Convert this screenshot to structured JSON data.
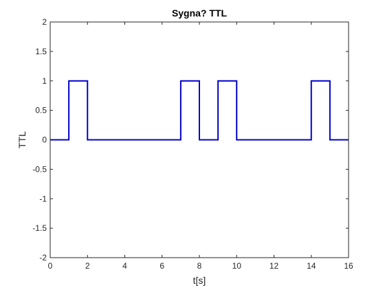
{
  "chart_data": {
    "type": "line",
    "title": "Sygna? TTL",
    "xlabel": "t[s]",
    "ylabel": "TTL",
    "xlim": [
      0,
      16
    ],
    "ylim": [
      -2,
      2
    ],
    "xticks": [
      0,
      2,
      4,
      6,
      8,
      10,
      12,
      14,
      16
    ],
    "yticks": [
      -2,
      -1.5,
      -1,
      -0.5,
      0,
      0.5,
      1,
      1.5,
      2
    ],
    "xtick_labels": [
      "0",
      "2",
      "4",
      "6",
      "8",
      "10",
      "12",
      "14",
      "16"
    ],
    "ytick_labels": [
      "-2",
      "-1.5",
      "-1",
      "-0.5",
      "0",
      "0.5",
      "1",
      "1.5",
      "2"
    ],
    "grid": false,
    "series": [
      {
        "color": "#0000cc",
        "x": [
          0,
          1,
          1,
          2,
          2,
          7,
          7,
          8,
          8,
          9,
          9,
          10,
          10,
          14,
          14,
          15,
          15,
          16
        ],
        "y": [
          0,
          0,
          1,
          1,
          0,
          0,
          1,
          1,
          0,
          0,
          1,
          1,
          0,
          0,
          1,
          1,
          0,
          0
        ]
      }
    ]
  }
}
